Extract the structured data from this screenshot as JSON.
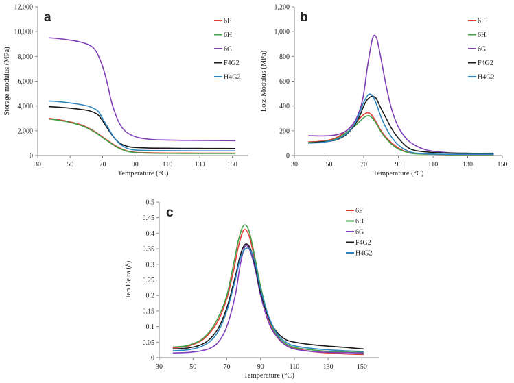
{
  "chart_data": [
    {
      "panel": "a",
      "type": "line",
      "xlabel": "Temperature (°C)",
      "ylabel": "Storage modulus (MPa)",
      "xlim": [
        30,
        160
      ],
      "ylim": [
        0,
        12000
      ],
      "xticks": [
        30,
        50,
        70,
        90,
        110,
        130,
        150
      ],
      "yticks": [
        0,
        2000,
        4000,
        6000,
        8000,
        10000,
        12000
      ],
      "ytick_labels": [
        "0",
        "2,000",
        "4,000",
        "6,000",
        "8,000",
        "10,000",
        "12,000"
      ],
      "legend_position": "top-right",
      "series": [
        {
          "name": "6F",
          "color": "#e53935",
          "x": [
            37,
            45,
            55,
            60,
            65,
            70,
            75,
            80,
            85,
            90,
            100,
            110,
            120,
            130,
            140,
            152
          ],
          "y": [
            3000,
            2850,
            2550,
            2300,
            1950,
            1500,
            1050,
            650,
            380,
            260,
            220,
            200,
            200,
            195,
            195,
            195
          ]
        },
        {
          "name": "6H",
          "color": "#43a047",
          "x": [
            37,
            45,
            55,
            60,
            65,
            70,
            75,
            80,
            85,
            90,
            100,
            110,
            120,
            130,
            140,
            152
          ],
          "y": [
            2950,
            2800,
            2500,
            2250,
            1900,
            1450,
            1000,
            600,
            350,
            240,
            190,
            175,
            170,
            165,
            165,
            165
          ]
        },
        {
          "name": "6G",
          "color": "#7e3fb8",
          "x": [
            37,
            45,
            55,
            62,
            66,
            70,
            73,
            75,
            77,
            80,
            83,
            87,
            92,
            100,
            110,
            120,
            130,
            140,
            152
          ],
          "y": [
            9500,
            9400,
            9200,
            8900,
            8400,
            7200,
            5800,
            4600,
            3700,
            2700,
            2100,
            1700,
            1450,
            1300,
            1250,
            1230,
            1220,
            1210,
            1200
          ]
        },
        {
          "name": "F4G2",
          "color": "#1a1a1a",
          "x": [
            37,
            45,
            55,
            62,
            67,
            70,
            74,
            78,
            82,
            86,
            90,
            100,
            110,
            120,
            130,
            140,
            152
          ],
          "y": [
            3950,
            3880,
            3750,
            3600,
            3300,
            2800,
            2000,
            1300,
            900,
            720,
            650,
            600,
            590,
            580,
            575,
            570,
            565
          ]
        },
        {
          "name": "H4G2",
          "color": "#2e86c1",
          "x": [
            37,
            45,
            55,
            62,
            67,
            70,
            74,
            78,
            82,
            86,
            90,
            100,
            110,
            120,
            130,
            140,
            152
          ],
          "y": [
            4400,
            4320,
            4150,
            3950,
            3600,
            3000,
            2100,
            1300,
            800,
            550,
            450,
            400,
            390,
            380,
            375,
            375,
            375
          ]
        }
      ]
    },
    {
      "panel": "b",
      "type": "line",
      "xlabel": "Temperature (°C)",
      "ylabel": "Loss Modulus (MPa)",
      "xlim": [
        30,
        150
      ],
      "ylim": [
        0,
        1200
      ],
      "xticks": [
        30,
        50,
        70,
        90,
        110,
        130,
        150
      ],
      "yticks": [
        0,
        200,
        400,
        600,
        800,
        1000,
        1200
      ],
      "ytick_labels": [
        "0",
        "200",
        "400",
        "600",
        "800",
        "1,000",
        "1,200"
      ],
      "legend_position": "top-right",
      "series": [
        {
          "name": "6F",
          "color": "#e53935",
          "x": [
            38,
            45,
            50,
            55,
            60,
            65,
            68,
            70,
            72,
            74,
            76,
            78,
            80,
            84,
            88,
            92,
            96,
            100,
            110,
            120,
            130,
            145
          ],
          "y": [
            110,
            115,
            125,
            150,
            200,
            260,
            305,
            330,
            345,
            335,
            300,
            250,
            200,
            130,
            80,
            45,
            25,
            15,
            10,
            8,
            8,
            8
          ]
        },
        {
          "name": "6H",
          "color": "#43a047",
          "x": [
            38,
            45,
            50,
            55,
            60,
            65,
            68,
            70,
            72,
            74,
            76,
            78,
            80,
            84,
            88,
            92,
            96,
            100,
            110,
            120,
            130,
            145
          ],
          "y": [
            105,
            110,
            120,
            140,
            185,
            240,
            280,
            305,
            320,
            315,
            285,
            240,
            190,
            120,
            70,
            40,
            22,
            14,
            10,
            8,
            8,
            8
          ]
        },
        {
          "name": "6G",
          "color": "#7e3fb8",
          "x": [
            38,
            45,
            50,
            55,
            60,
            65,
            68,
            70,
            72,
            74,
            75,
            76,
            77,
            78,
            80,
            83,
            86,
            90,
            95,
            100,
            105,
            110,
            120,
            130,
            145
          ],
          "y": [
            160,
            158,
            160,
            170,
            200,
            280,
            380,
            500,
            700,
            870,
            940,
            970,
            960,
            920,
            780,
            560,
            380,
            230,
            130,
            80,
            50,
            35,
            22,
            18,
            15
          ]
        },
        {
          "name": "F4G2",
          "color": "#1a1a1a",
          "x": [
            38,
            45,
            50,
            55,
            60,
            65,
            68,
            70,
            72,
            74,
            75,
            76,
            77,
            78,
            80,
            83,
            86,
            90,
            95,
            100,
            110,
            120,
            130,
            145
          ],
          "y": [
            100,
            110,
            115,
            130,
            170,
            250,
            330,
            400,
            450,
            475,
            480,
            475,
            465,
            440,
            380,
            300,
            220,
            140,
            70,
            40,
            25,
            20,
            18,
            18
          ]
        },
        {
          "name": "H4G2",
          "color": "#2e86c1",
          "x": [
            38,
            45,
            50,
            55,
            60,
            65,
            68,
            70,
            72,
            73,
            74,
            75,
            76,
            78,
            80,
            83,
            86,
            90,
            95,
            100,
            110,
            120,
            130,
            145
          ],
          "y": [
            100,
            105,
            115,
            135,
            175,
            260,
            360,
            430,
            480,
            495,
            495,
            485,
            460,
            390,
            310,
            220,
            150,
            85,
            40,
            20,
            12,
            10,
            10,
            10
          ]
        }
      ]
    },
    {
      "panel": "c",
      "type": "line",
      "xlabel": "Temperature (°C)",
      "ylabel": "Tan Delta (δ)",
      "xlim": [
        30,
        160
      ],
      "ylim": [
        0,
        0.5
      ],
      "xticks": [
        30,
        50,
        70,
        90,
        110,
        130,
        150
      ],
      "yticks": [
        0,
        0.05,
        0.1,
        0.15,
        0.2,
        0.25,
        0.3,
        0.35,
        0.4,
        0.45,
        0.5
      ],
      "ytick_labels": [
        "0",
        "0.05",
        "0.1",
        "0.15",
        "0.2",
        "0.25",
        "0.3",
        "0.35",
        "0.4",
        "0.45",
        "0.5"
      ],
      "legend_position": "top-right",
      "series": [
        {
          "name": "6F",
          "color": "#e53935",
          "x": [
            38,
            45,
            50,
            55,
            60,
            65,
            70,
            74,
            77,
            80,
            83,
            86,
            90,
            95,
            100,
            105,
            110,
            120,
            130,
            140,
            151
          ],
          "y": [
            0.032,
            0.035,
            0.042,
            0.055,
            0.08,
            0.12,
            0.19,
            0.28,
            0.36,
            0.41,
            0.395,
            0.33,
            0.22,
            0.12,
            0.065,
            0.04,
            0.03,
            0.02,
            0.015,
            0.012,
            0.01
          ]
        },
        {
          "name": "6H",
          "color": "#43a047",
          "x": [
            38,
            45,
            50,
            55,
            60,
            65,
            70,
            74,
            77,
            80,
            83,
            86,
            90,
            95,
            100,
            105,
            110,
            120,
            130,
            140,
            151
          ],
          "y": [
            0.034,
            0.037,
            0.045,
            0.058,
            0.085,
            0.13,
            0.2,
            0.3,
            0.38,
            0.425,
            0.41,
            0.34,
            0.23,
            0.125,
            0.07,
            0.045,
            0.033,
            0.025,
            0.02,
            0.018,
            0.017
          ]
        },
        {
          "name": "6G",
          "color": "#7e3fb8",
          "x": [
            38,
            45,
            50,
            55,
            60,
            65,
            70,
            75,
            78,
            81,
            84,
            87,
            90,
            95,
            100,
            105,
            110,
            120,
            130,
            140,
            151
          ],
          "y": [
            0.015,
            0.016,
            0.018,
            0.022,
            0.03,
            0.05,
            0.1,
            0.2,
            0.3,
            0.36,
            0.34,
            0.28,
            0.2,
            0.11,
            0.065,
            0.04,
            0.028,
            0.02,
            0.017,
            0.016,
            0.015
          ]
        },
        {
          "name": "F4G2",
          "color": "#1a1a1a",
          "x": [
            38,
            45,
            50,
            55,
            60,
            65,
            70,
            75,
            78,
            81,
            84,
            87,
            90,
            95,
            100,
            105,
            110,
            120,
            130,
            140,
            151
          ],
          "y": [
            0.028,
            0.03,
            0.034,
            0.042,
            0.06,
            0.095,
            0.16,
            0.26,
            0.33,
            0.365,
            0.35,
            0.29,
            0.21,
            0.125,
            0.08,
            0.058,
            0.05,
            0.042,
            0.037,
            0.033,
            0.028
          ]
        },
        {
          "name": "H4G2",
          "color": "#2e86c1",
          "x": [
            38,
            45,
            50,
            55,
            60,
            65,
            70,
            75,
            78,
            81,
            84,
            87,
            90,
            95,
            100,
            105,
            110,
            120,
            130,
            140,
            151
          ],
          "y": [
            0.022,
            0.024,
            0.028,
            0.036,
            0.052,
            0.085,
            0.15,
            0.25,
            0.32,
            0.35,
            0.345,
            0.3,
            0.22,
            0.13,
            0.075,
            0.05,
            0.038,
            0.03,
            0.025,
            0.022,
            0.02
          ]
        }
      ]
    }
  ]
}
